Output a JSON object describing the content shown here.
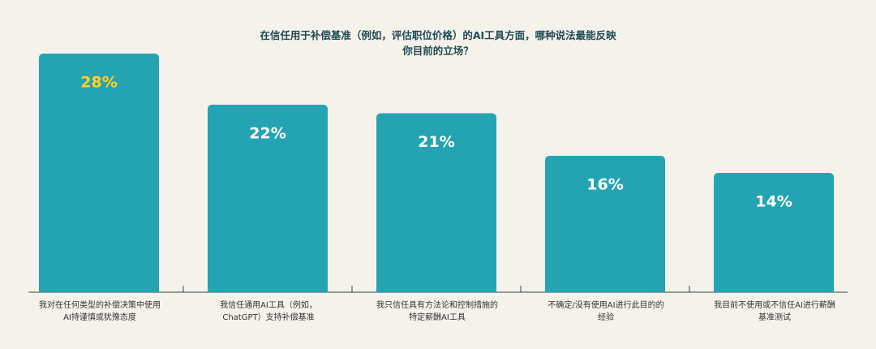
{
  "chart_data": {
    "type": "bar",
    "title": "在信任用于补偿基准（例如，评估职位价格）的AI工具方面，哪种说法最能反映你目前的立场？",
    "categories": [
      "我对在任何类型的补偿决策中使用AI持谨慎或犹豫态度",
      "我信任通用AI工具（例如，ChatGPT）支持补偿基准",
      "我只信任具有方法论和控制措施的特定薪酬AI工具",
      "不确定/没有使用AI进行此目的的经验",
      "我目前不使用或不信任AI进行薪酬基准测试"
    ],
    "values": [
      28,
      22,
      21,
      16,
      14
    ],
    "value_labels": [
      "28%",
      "22%",
      "21%",
      "16%",
      "14%"
    ],
    "value_label_colors": [
      "#f2d33a",
      "#ffffff",
      "#ffffff",
      "#ffffff",
      "#ffffff"
    ],
    "color": "#24a4b3"
  }
}
